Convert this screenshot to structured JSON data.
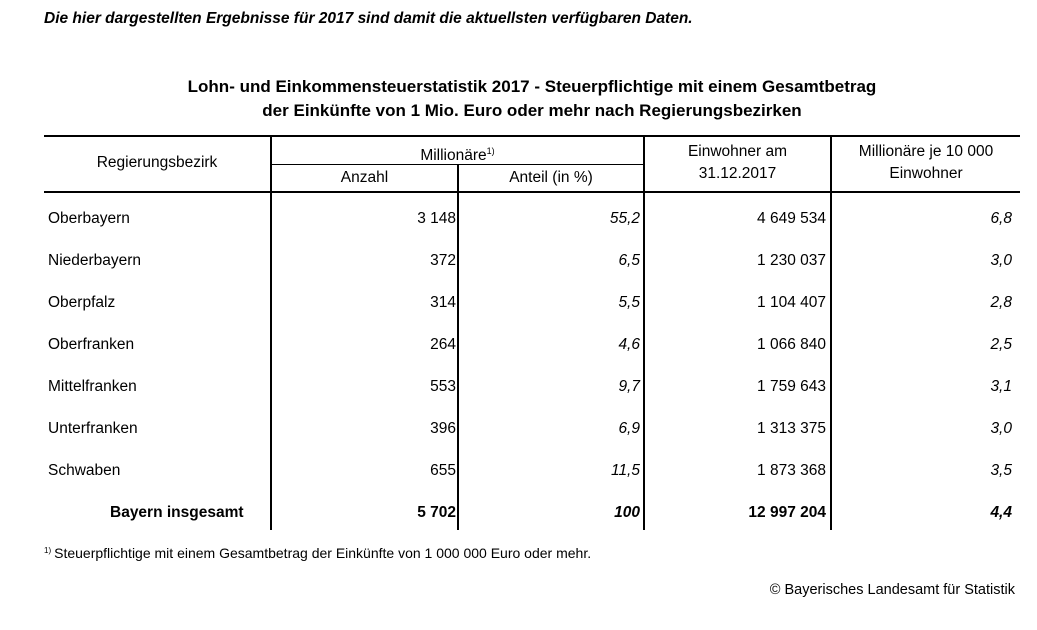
{
  "intro_text": "Die hier dargestellten Ergebnisse für 2017 sind damit die aktuellsten verfügbaren Daten.",
  "title": {
    "line1": "Lohn- und Einkommensteuerstatistik 2017 - Steuerpflichtige mit einem Gesamtbetrag",
    "line2": "der Einkünfte von 1 Mio. Euro oder mehr nach  Regierungsbezirken"
  },
  "table": {
    "headers": {
      "region": "Regierungsbezirk",
      "millionaires": "Millionäre",
      "millionaires_note": "1)",
      "count": "Anzahl",
      "share": "Anteil (in %)",
      "population_line1": "Einwohner am",
      "population_line2": "31.12.2017",
      "per10000_line1": "Millionäre je 10 000",
      "per10000_line2": "Einwohner"
    },
    "rows": [
      {
        "region": "Oberbayern",
        "count": "3 148",
        "share": "55,2",
        "population": "4 649 534",
        "per10000": "6,8"
      },
      {
        "region": "Niederbayern",
        "count": "372",
        "share": "6,5",
        "population": "1 230 037",
        "per10000": "3,0"
      },
      {
        "region": "Oberpfalz",
        "count": "314",
        "share": "5,5",
        "population": "1 104 407",
        "per10000": "2,8"
      },
      {
        "region": "Oberfranken",
        "count": "264",
        "share": "4,6",
        "population": "1 066 840",
        "per10000": "2,5"
      },
      {
        "region": "Mittelfranken",
        "count": "553",
        "share": "9,7",
        "population": "1 759 643",
        "per10000": "3,1"
      },
      {
        "region": "Unterfranken",
        "count": "396",
        "share": "6,9",
        "population": "1 313 375",
        "per10000": "3,0"
      },
      {
        "region": "Schwaben",
        "count": "655",
        "share": "11,5",
        "population": "1 873 368",
        "per10000": "3,5"
      }
    ],
    "total": {
      "region": "Bayern insgesamt",
      "count": "5 702",
      "share": "100",
      "population": "12 997 204",
      "per10000": "4,4"
    }
  },
  "footnote": {
    "marker": "1)",
    "text": "Steuerpflichtige mit einem Gesamtbetrag der Einkünfte von 1 000 000 Euro oder mehr."
  },
  "source": "© Bayerisches Landesamt für Statistik"
}
